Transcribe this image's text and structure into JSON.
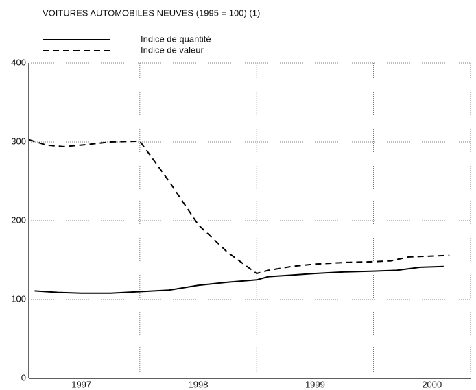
{
  "chart_data": {
    "type": "line",
    "title": "VOITURES AUTOMOBILES NEUVES (1995 = 100) (1)",
    "series": [
      {
        "name": "Indice de quantité",
        "color": "#000000",
        "dash": "solid",
        "x": [
          1997.1,
          1997.3,
          1997.5,
          1997.75,
          1998.0,
          1998.25,
          1998.5,
          1998.75,
          1999.0,
          1999.1,
          1999.3,
          1999.5,
          1999.75,
          2000.0,
          2000.2,
          2000.4,
          2000.6
        ],
        "values": [
          111,
          109,
          108,
          108,
          110,
          112,
          118,
          122,
          125,
          129,
          131,
          133,
          135,
          136,
          137,
          141,
          142
        ]
      },
      {
        "name": "Indice de valeur",
        "color": "#000000",
        "dash": "dashed",
        "x": [
          1997.05,
          1997.2,
          1997.35,
          1997.5,
          1997.75,
          1998.0,
          1998.25,
          1998.5,
          1998.75,
          1999.0,
          1999.1,
          1999.3,
          1999.5,
          1999.75,
          2000.0,
          2000.15,
          2000.3,
          2000.65
        ],
        "values": [
          303,
          296,
          294,
          296,
          300,
          301,
          250,
          195,
          160,
          133,
          137,
          142,
          145,
          147,
          148,
          149,
          154,
          156
        ]
      }
    ],
    "xlim": [
      1997.05,
      2000.83
    ],
    "xticks": [
      {
        "value": 1997.5,
        "label": "1997"
      },
      {
        "value": 1998.5,
        "label": "1998"
      },
      {
        "value": 1999.5,
        "label": "1999"
      },
      {
        "value": 2000.5,
        "label": "2000"
      }
    ],
    "xgrid": [
      1998,
      1999,
      2000
    ],
    "ylim": [
      0,
      400
    ],
    "yticks": [
      0,
      100,
      200,
      300,
      400
    ],
    "grid": true
  }
}
